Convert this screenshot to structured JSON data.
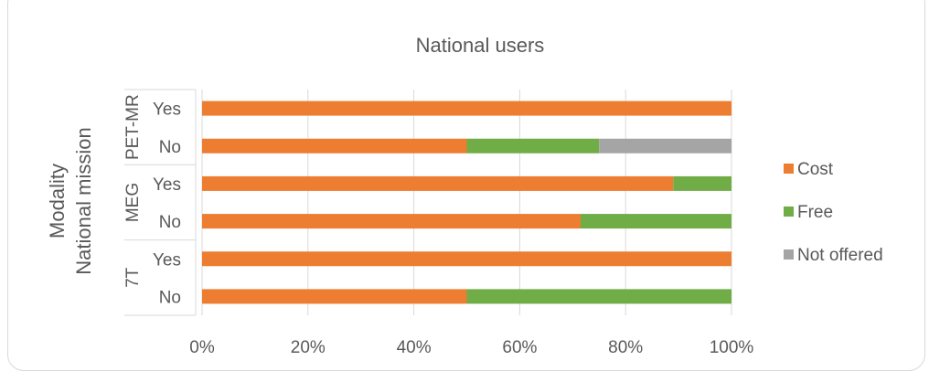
{
  "chart_data": {
    "type": "bar",
    "orientation": "horizontal",
    "stacked": "percent",
    "title": "National users",
    "ylabel": "Modality",
    "ylabel_secondary": "National mission",
    "groups": [
      {
        "name": "PET-MR",
        "categories": [
          "Yes",
          "No"
        ]
      },
      {
        "name": "MEG",
        "categories": [
          "Yes",
          "No"
        ]
      },
      {
        "name": "7T",
        "categories": [
          "Yes",
          "No"
        ]
      }
    ],
    "rows": [
      "PET-MR Yes",
      "PET-MR No",
      "MEG Yes",
      "MEG No",
      "7T Yes",
      "7T No"
    ],
    "series": [
      {
        "name": "Cost",
        "color": "#ED7D31",
        "values": [
          100,
          50,
          89,
          71.5,
          100,
          50
        ]
      },
      {
        "name": "Free",
        "color": "#70AD47",
        "values": [
          0,
          25,
          11,
          28.5,
          0,
          50
        ]
      },
      {
        "name": "Not offered",
        "color": "#A5A5A5",
        "values": [
          0,
          25,
          0,
          0,
          0,
          0
        ]
      }
    ],
    "xlim": [
      0,
      100
    ],
    "x_ticks": [
      "0%",
      "20%",
      "40%",
      "60%",
      "80%",
      "100%"
    ],
    "grid": true,
    "legend_position": "right"
  }
}
